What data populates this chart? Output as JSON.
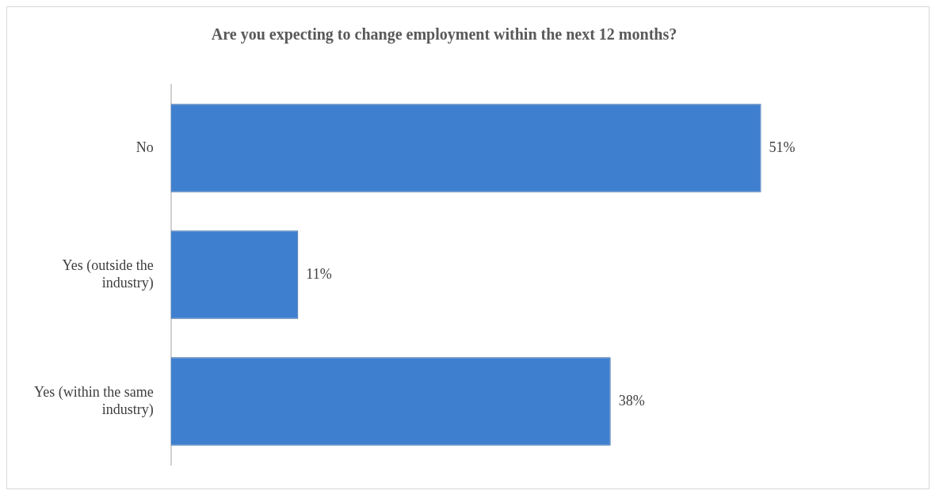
{
  "chart_data": {
    "type": "bar",
    "orientation": "horizontal",
    "title": "Are you expecting to change employment within the next 12 months?",
    "categories": [
      "No",
      "Yes (outside the industry)",
      "Yes (within the same industry)"
    ],
    "values": [
      51,
      11,
      38
    ],
    "color": "#3f7fcf",
    "value_labels": [
      "51%",
      "11%",
      "38%"
    ],
    "grid": false,
    "legend": false
  }
}
